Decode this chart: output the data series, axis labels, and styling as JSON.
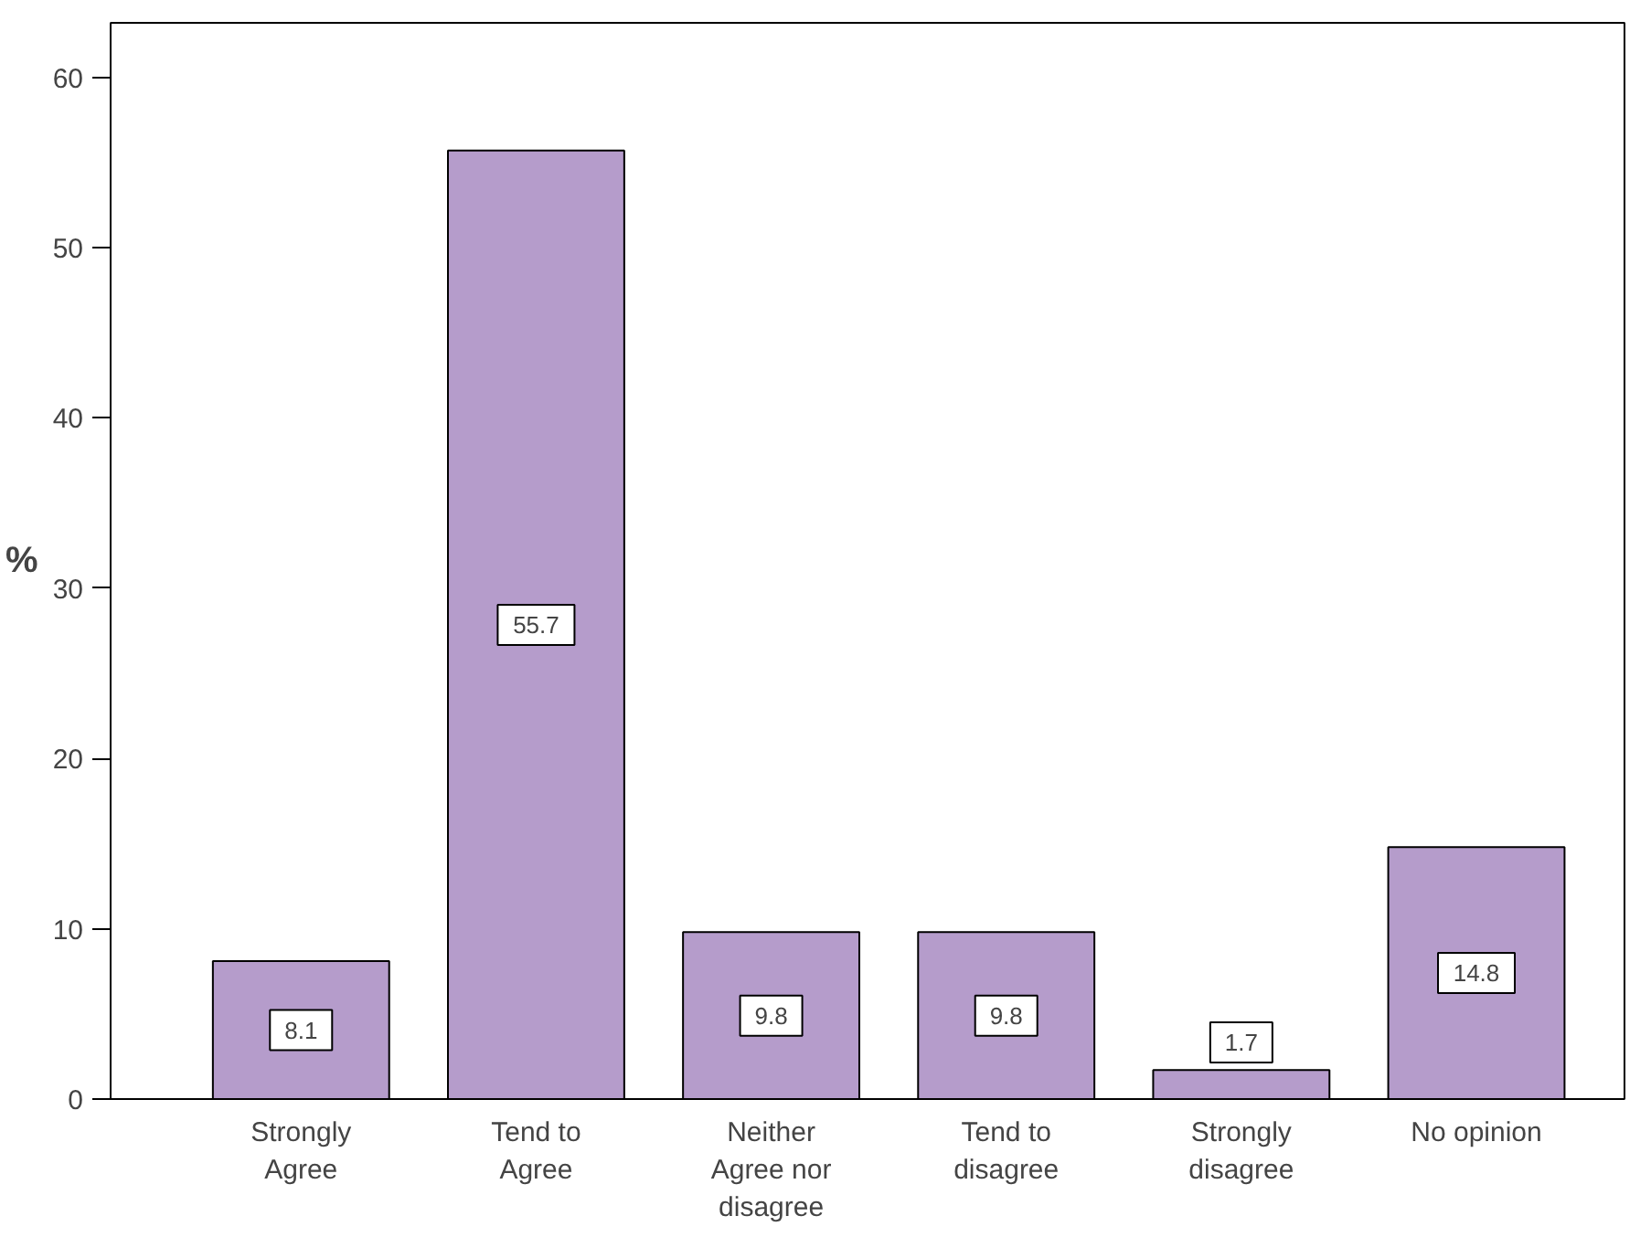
{
  "chart_data": {
    "type": "bar",
    "ylabel": "%",
    "categories": [
      "Strongly Agree",
      "Tend to Agree",
      "Neither Agree nor disagree",
      "Tend to disagree",
      "Strongly disagree",
      "No opinion"
    ],
    "values": [
      8.1,
      55.7,
      9.8,
      9.8,
      1.7,
      14.8
    ],
    "color": "#b59ccb",
    "data_labels": true,
    "grid": false,
    "ylim": [
      0,
      63.2
    ],
    "yticks": [
      0,
      10,
      20,
      30,
      40,
      50,
      60
    ]
  }
}
